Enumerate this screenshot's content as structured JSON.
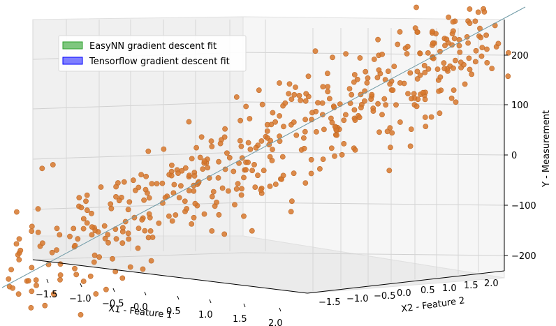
{
  "chart_data": {
    "type": "scatter",
    "projection": "3d",
    "title": "",
    "axes": {
      "x": {
        "label": "X1 - Feature 1",
        "ticks": [
          "−1.5",
          "−1.0",
          "−0.5",
          "0.0",
          "0.5",
          "1.0",
          "1.5",
          "2.0"
        ],
        "range": [
          -1.8,
          2.2
        ]
      },
      "y": {
        "label": "X2 - Feature 2",
        "ticks": [
          "−1.5",
          "−1.0",
          "−0.5",
          "0.0",
          "0.5",
          "1.0",
          "1.5",
          "2.0"
        ],
        "range": [
          -1.8,
          2.2
        ]
      },
      "z": {
        "label": "Y - Measurement",
        "ticks": [
          "−200",
          "−100",
          "0",
          "100",
          "200"
        ],
        "range": [
          -220,
          260
        ]
      }
    },
    "grid": true,
    "legend": {
      "placement": "upper-left",
      "entries": [
        {
          "label": "EasyNN gradient descent fit",
          "color": "#7fc77f",
          "edge": "#2ca02c"
        },
        {
          "label": "Tensorflow gradient descent fit",
          "color": "#7f7fff",
          "edge": "#0000ff"
        }
      ]
    },
    "series": [
      {
        "kind": "points",
        "color": "#d7782d",
        "count": 500,
        "x_range": [
          -2.0,
          2.5
        ],
        "y_range": [
          -1.8,
          2.3
        ],
        "z_range": [
          -230,
          280
        ],
        "relation": "y ≈ 90·x1 + 30·x2 + noise"
      },
      {
        "kind": "line",
        "color": "#6f9aa6",
        "description": "fitted regression line"
      }
    ]
  }
}
